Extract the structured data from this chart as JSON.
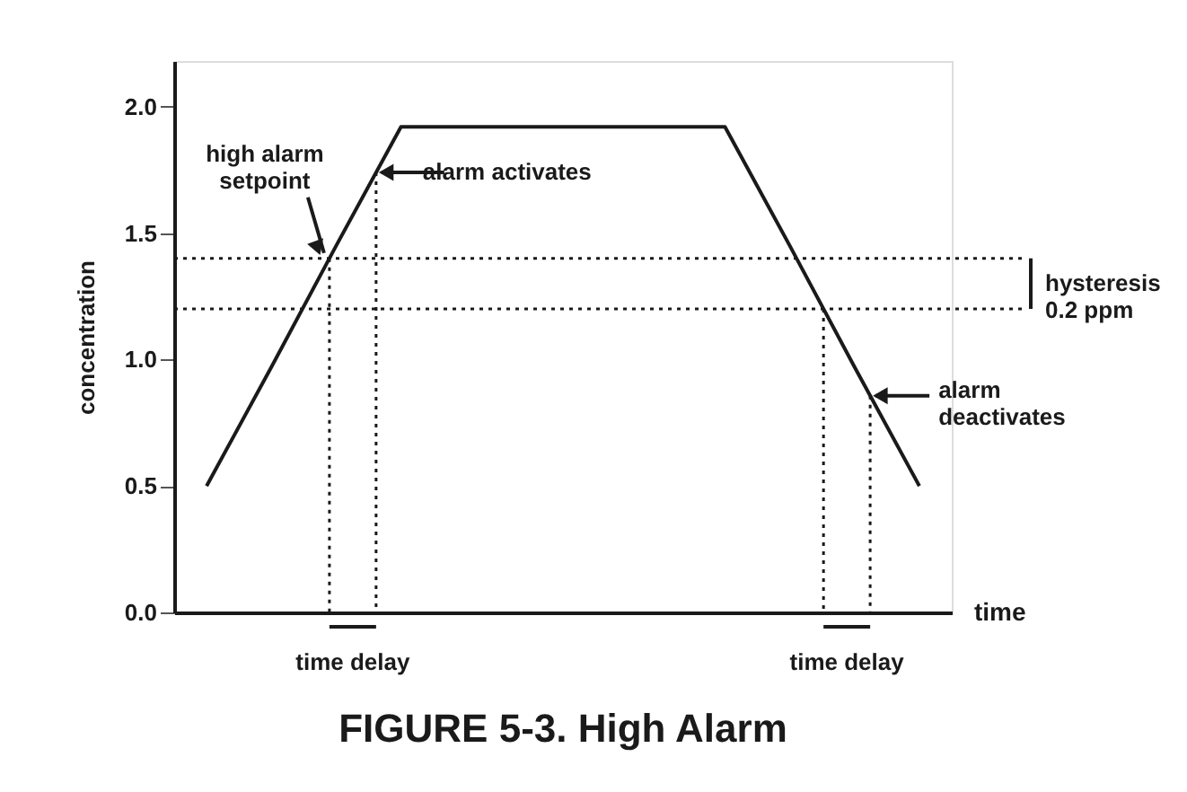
{
  "chart_data": {
    "type": "line",
    "title": "FIGURE 5-3. High Alarm",
    "xlabel": "time",
    "ylabel": "concentration",
    "categories": [
      null,
      null,
      null,
      null,
      null,
      null,
      null,
      null,
      null,
      null,
      null,
      null
    ],
    "series": [
      {
        "color": "#1a1a1a",
        "values": [
          0.5,
          0.97,
          1.45,
          1.92,
          1.92,
          1.92,
          1.92,
          1.92,
          1.92,
          1.45,
          0.97,
          0.5
        ]
      }
    ],
    "ylim": [
      0,
      2.18
    ],
    "yticks": [
      {
        "value": 0,
        "label": "0.0"
      },
      {
        "value": 0.5,
        "label": "0.5"
      },
      {
        "value": 1,
        "label": "1.0"
      },
      {
        "value": 1.5,
        "label": "1.5"
      },
      {
        "value": 2,
        "label": "2.0"
      }
    ],
    "tick_labels": "y",
    "grid": false,
    "ref_lines": [
      {
        "axis": "y",
        "value": 1.4,
        "line_style": "dotted",
        "color": "#1a1a1a"
      },
      {
        "axis": "y",
        "value": 1.2,
        "line_style": "dotted",
        "color": "#1a1a1a"
      }
    ],
    "annotations": [
      "high alarm setpoint",
      "alarm activates",
      "alarm deactivates",
      "hysteresis 0.2 ppm",
      "time delay",
      "time delay"
    ]
  }
}
